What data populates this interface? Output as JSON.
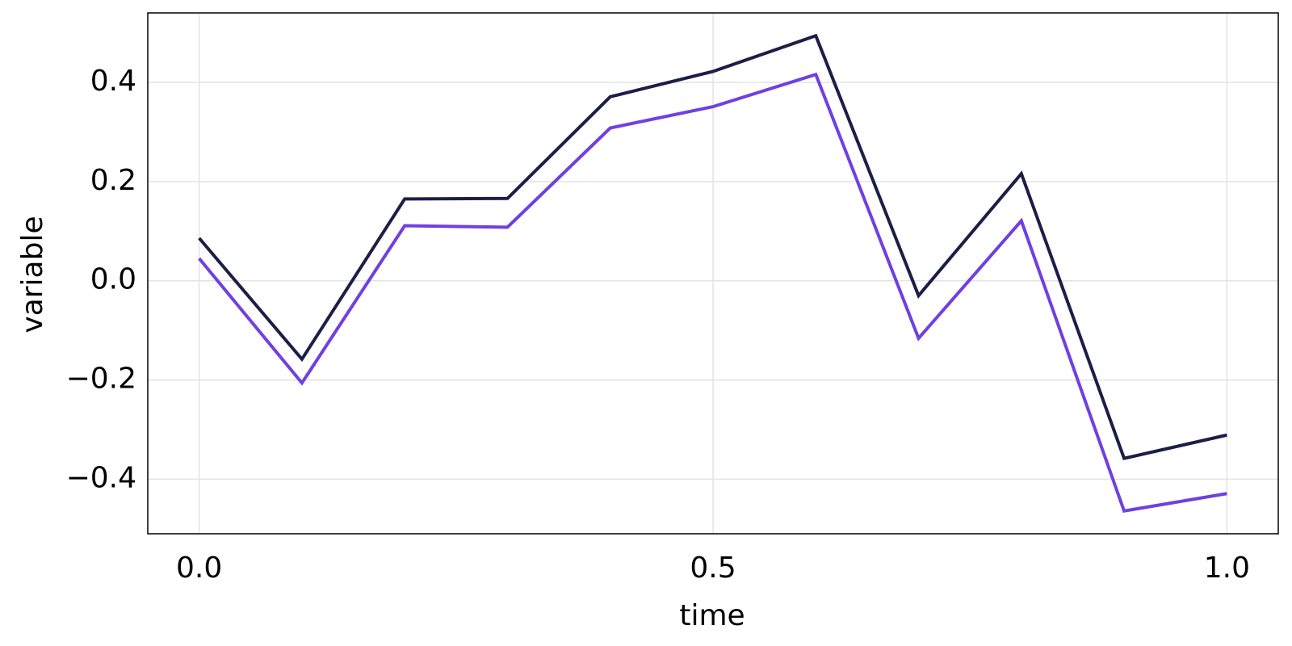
{
  "chart_data": {
    "type": "line",
    "x": [
      0,
      0.1,
      0.2,
      0.3,
      0.4,
      0.5,
      0.6,
      0.7,
      0.8,
      0.9,
      1.0
    ],
    "series": [
      {
        "color": "#1b1f46",
        "values": [
          0.086,
          -0.158,
          0.165,
          0.166,
          0.371,
          0.422,
          0.494,
          -0.03,
          0.216,
          -0.358,
          -0.311
        ]
      },
      {
        "color": "#7040e0",
        "values": [
          0.045,
          -0.206,
          0.111,
          0.108,
          0.308,
          0.351,
          0.416,
          -0.116,
          0.121,
          -0.464,
          -0.429
        ]
      }
    ],
    "xlabel": "time",
    "ylabel": "variable",
    "xlim": [
      -0.05,
      1.05
    ],
    "ylim": [
      -0.51,
      0.54
    ],
    "xticks": [
      {
        "value": 0,
        "label": "0.0"
      },
      {
        "value": 0.5,
        "label": "0.5"
      },
      {
        "value": 1,
        "label": "1.0"
      }
    ],
    "yticks": [
      {
        "value": -0.4,
        "label": "−0.4"
      },
      {
        "value": -0.2,
        "label": "−0.2"
      },
      {
        "value": 0,
        "label": "0.0"
      },
      {
        "value": 0.2,
        "label": "0.2"
      },
      {
        "value": 0.4,
        "label": "0.4"
      }
    ],
    "grid": true
  }
}
